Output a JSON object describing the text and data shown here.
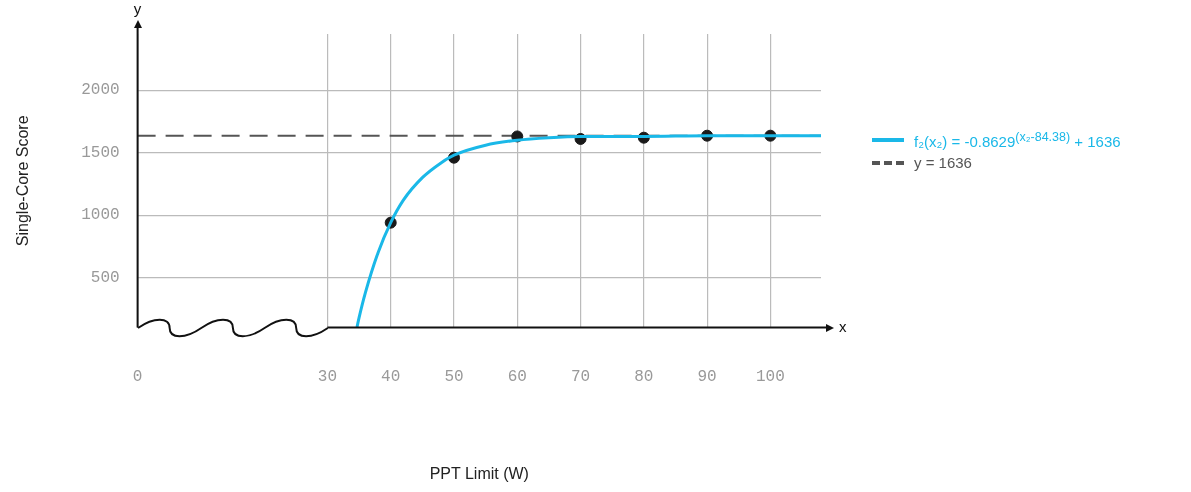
{
  "chart_data": {
    "type": "scatter",
    "xlabel": "PPT Limit (W)",
    "ylabel": "Single-Core Score",
    "annotations": [
      "x",
      "y"
    ],
    "xlim": [
      0,
      108
    ],
    "xticks": [
      0,
      30,
      40,
      50,
      60,
      70,
      80,
      90,
      100
    ],
    "ylim": [
      100,
      2450
    ],
    "yticks": [
      500,
      1000,
      1500,
      2000
    ],
    "grid": true,
    "legend": "right",
    "marker": "circle",
    "ref_lines": [
      {
        "axis": "y",
        "value": 1636,
        "label": "y = 1636",
        "color": "#555555",
        "line_style": "dashed"
      }
    ],
    "series": [
      {
        "name": "f₂(x₂) = -0.8629$^{(x₂-84.38)}$ + 1636",
        "type": "line",
        "marker": "none",
        "color": "#1ab8e8",
        "x": [
          34.7,
          35,
          36,
          38,
          40,
          42,
          45,
          48,
          50,
          55,
          60,
          65,
          70,
          80,
          90,
          108
        ],
        "values": [
          110,
          180,
          380,
          700,
          940,
          1120,
          1300,
          1420,
          1480,
          1560,
          1600,
          1620,
          1630,
          1630,
          1636,
          1636
        ]
      },
      {
        "type": "scatter",
        "color": "#1a1a1a",
        "x": [
          40,
          50,
          60,
          70,
          80,
          90,
          100
        ],
        "values": [
          940,
          1460,
          1630,
          1610,
          1620,
          1636,
          1636
        ]
      }
    ]
  }
}
